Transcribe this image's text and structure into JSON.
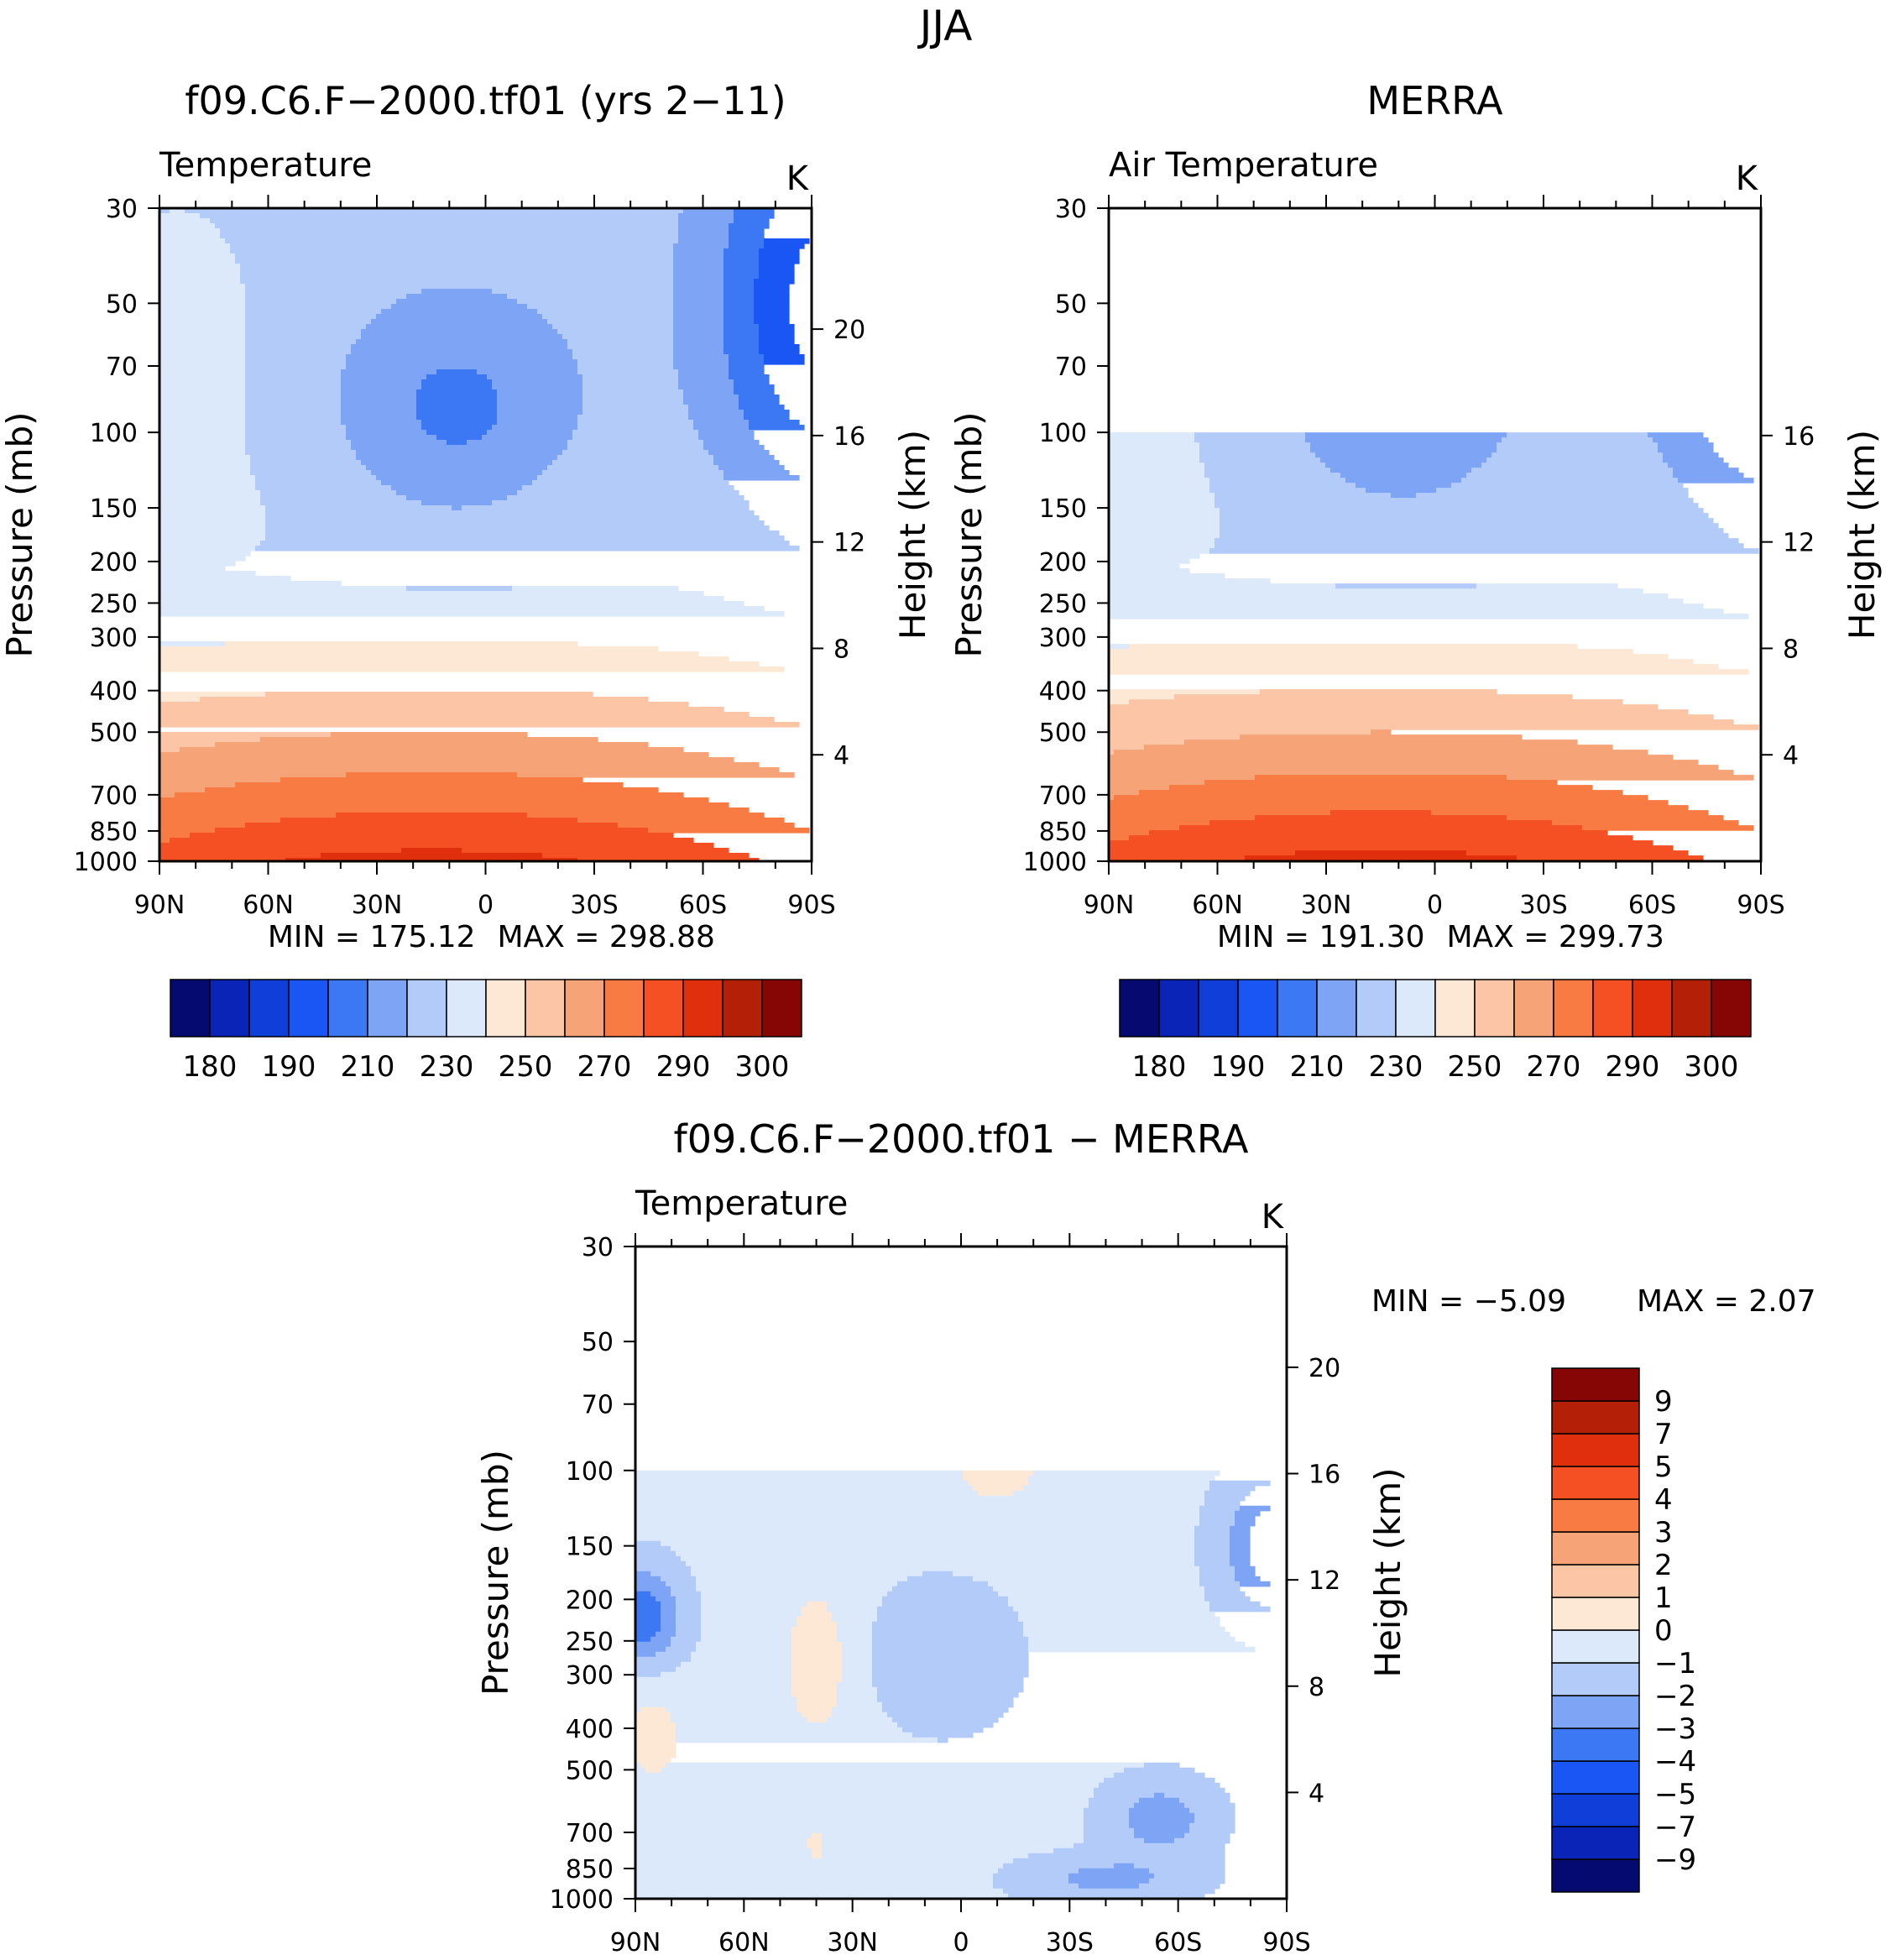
{
  "figure_title": "JJA",
  "chart_data": [
    {
      "type": "heatmap",
      "id": "model",
      "title": "f09.C6.F−2000.tf01 (yrs 2−11)",
      "variable": "Temperature",
      "units": "K",
      "xlabel": "",
      "ylabel": "Pressure (mb)",
      "y2label": "Height (km)",
      "x_ticks": [
        "90N",
        "60N",
        "30N",
        "0",
        "30S",
        "60S",
        "90S"
      ],
      "x_values": [
        90,
        60,
        30,
        0,
        -30,
        -60,
        -90
      ],
      "y_ticks": [
        "30",
        "50",
        "70",
        "100",
        "150",
        "200",
        "250",
        "300",
        "400",
        "500",
        "700",
        "850",
        "1000"
      ],
      "y_values": [
        30,
        50,
        70,
        100,
        150,
        200,
        250,
        300,
        400,
        500,
        700,
        850,
        1000
      ],
      "y2_ticks": [
        "4",
        "8",
        "12",
        "16",
        "20"
      ],
      "y2_values": [
        4,
        8,
        12,
        16,
        20
      ],
      "ylim": [
        1000,
        30
      ],
      "data_top_pressure": 30,
      "min_text": "MIN = 175.12",
      "max_text": "MAX = 298.88",
      "min": 175.12,
      "max": 298.88,
      "colorbar": {
        "orientation": "horizontal",
        "colors": [
          "#040a6f",
          "#0a24b8",
          "#0f3fd8",
          "#1a56f4",
          "#3c78f4",
          "#7ea5f5",
          "#b2cbf9",
          "#dce9fb",
          "#fde8d5",
          "#fbc5a6",
          "#f7a378",
          "#f77b43",
          "#f55023",
          "#e02f0c",
          "#b41f07",
          "#860606"
        ],
        "levels": [
          180,
          185,
          190,
          200,
          210,
          220,
          230,
          240,
          250,
          260,
          270,
          280,
          290,
          295,
          300
        ],
        "tick_labels": [
          "180",
          "190",
          "210",
          "230",
          "250",
          "270",
          "290",
          "300"
        ]
      }
    },
    {
      "type": "heatmap",
      "id": "obs",
      "title": "MERRA",
      "variable": "Air Temperature",
      "units": "K",
      "xlabel": "",
      "ylabel": "Pressure (mb)",
      "y2label": "Height (km)",
      "x_ticks": [
        "90N",
        "60N",
        "30N",
        "0",
        "30S",
        "60S",
        "90S"
      ],
      "x_values": [
        90,
        60,
        30,
        0,
        -30,
        -60,
        -90
      ],
      "y_ticks": [
        "30",
        "50",
        "70",
        "100",
        "150",
        "200",
        "250",
        "300",
        "400",
        "500",
        "700",
        "850",
        "1000"
      ],
      "y_values": [
        30,
        50,
        70,
        100,
        150,
        200,
        250,
        300,
        400,
        500,
        700,
        850,
        1000
      ],
      "y2_ticks": [
        "4",
        "8",
        "12",
        "16"
      ],
      "y2_values": [
        4,
        8,
        12,
        16
      ],
      "ylim": [
        1000,
        30
      ],
      "data_top_pressure": 100,
      "min_text": "MIN = 191.30",
      "max_text": "MAX = 299.73",
      "min": 191.3,
      "max": 299.73,
      "colorbar": {
        "orientation": "horizontal",
        "colors": [
          "#040a6f",
          "#0a24b8",
          "#0f3fd8",
          "#1a56f4",
          "#3c78f4",
          "#7ea5f5",
          "#b2cbf9",
          "#dce9fb",
          "#fde8d5",
          "#fbc5a6",
          "#f7a378",
          "#f77b43",
          "#f55023",
          "#e02f0c",
          "#b41f07",
          "#860606"
        ],
        "levels": [
          180,
          185,
          190,
          200,
          210,
          220,
          230,
          240,
          250,
          260,
          270,
          280,
          290,
          295,
          300
        ],
        "tick_labels": [
          "180",
          "190",
          "210",
          "230",
          "250",
          "270",
          "290",
          "300"
        ]
      }
    },
    {
      "type": "heatmap",
      "id": "diff",
      "title": "f09.C6.F−2000.tf01 − MERRA",
      "variable": "Temperature",
      "units": "K",
      "xlabel": "",
      "ylabel": "Pressure (mb)",
      "y2label": "Height (km)",
      "x_ticks": [
        "90N",
        "60N",
        "30N",
        "0",
        "30S",
        "60S",
        "90S"
      ],
      "x_values": [
        90,
        60,
        30,
        0,
        -30,
        -60,
        -90
      ],
      "y_ticks": [
        "30",
        "50",
        "70",
        "100",
        "150",
        "200",
        "250",
        "300",
        "400",
        "500",
        "700",
        "850",
        "1000"
      ],
      "y_values": [
        30,
        50,
        70,
        100,
        150,
        200,
        250,
        300,
        400,
        500,
        700,
        850,
        1000
      ],
      "y2_ticks": [
        "4",
        "8",
        "12",
        "16",
        "20"
      ],
      "y2_values": [
        4,
        8,
        12,
        16,
        20
      ],
      "ylim": [
        1000,
        30
      ],
      "data_top_pressure": 100,
      "min_text": "MIN =   −5.09",
      "max_text": "MAX =    2.07",
      "min": -5.09,
      "max": 2.07,
      "colorbar": {
        "orientation": "vertical",
        "colors": [
          "#040a6f",
          "#0a24b8",
          "#0f3fd8",
          "#1a56f4",
          "#3c78f4",
          "#7ea5f5",
          "#b2cbf9",
          "#dce9fb",
          "#fde8d5",
          "#fbc5a6",
          "#f7a378",
          "#f77b43",
          "#f55023",
          "#e02f0c",
          "#b41f07",
          "#860606"
        ],
        "levels": [
          -9,
          -7,
          -5,
          -4,
          -3,
          -2,
          -1,
          0,
          1,
          2,
          3,
          4,
          5,
          7,
          9
        ],
        "tick_labels": [
          "−9",
          "−7",
          "−5",
          "−4",
          "−3",
          "−2",
          "−1",
          "0",
          "1",
          "2",
          "3",
          "4",
          "5",
          "7",
          "9"
        ]
      }
    }
  ]
}
